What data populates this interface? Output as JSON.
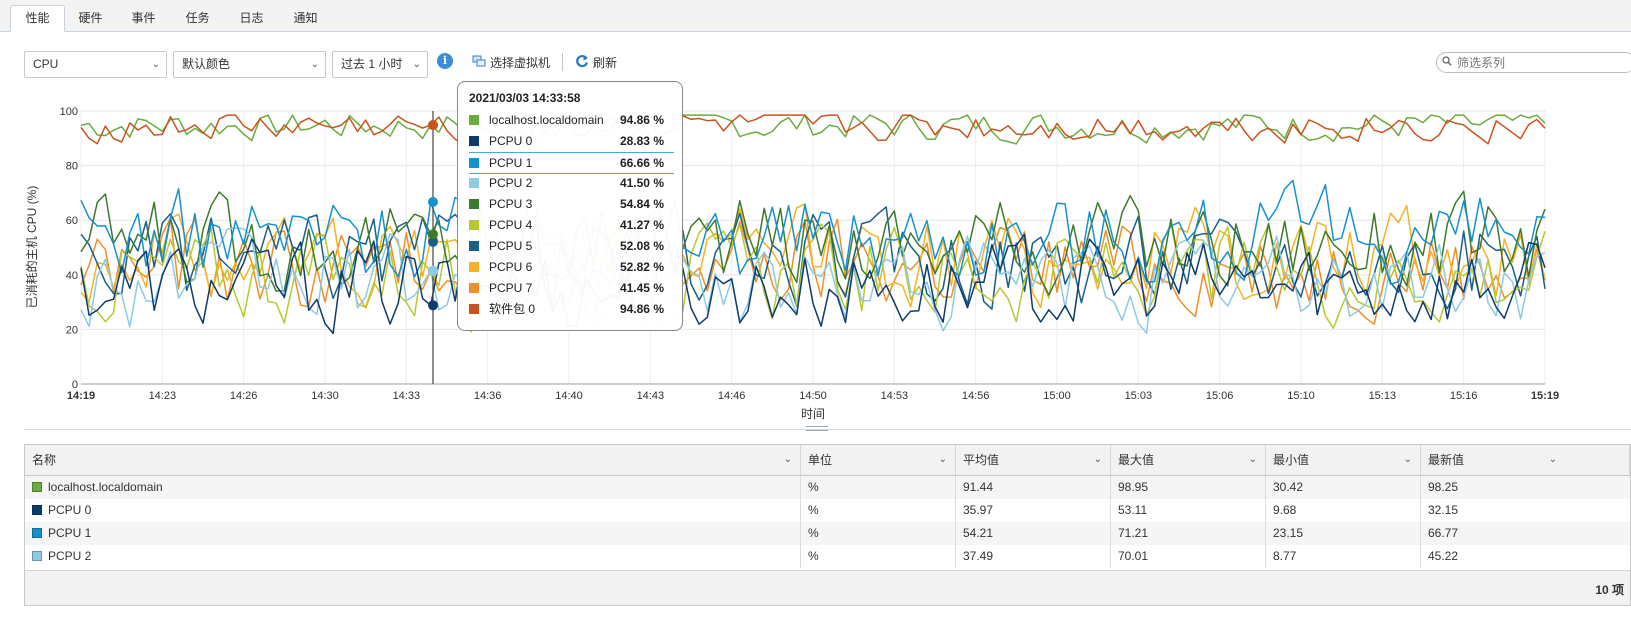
{
  "tabs": [
    {
      "label": "性能",
      "active": true
    },
    {
      "label": "硬件"
    },
    {
      "label": "事件"
    },
    {
      "label": "任务"
    },
    {
      "label": "日志"
    },
    {
      "label": "通知"
    }
  ],
  "toolbar": {
    "metric_select": "CPU",
    "color_select": "默认颜色",
    "time_select": "过去 1 小时",
    "select_vm_label": "选择虚拟机",
    "refresh_label": "刷新",
    "filter_placeholder": "筛选系列"
  },
  "tooltip": {
    "title": "2021/03/03 14:33:58",
    "rows": [
      {
        "name": "localhost.localdomain",
        "value": "94.86 %",
        "color": "#6aac3e"
      },
      {
        "name": "PCPU 0",
        "value": "28.83 %",
        "color": "#0d3b6e"
      },
      {
        "name": "PCPU 1",
        "value": "66.66 %",
        "color": "#1691cf",
        "highlight": true
      },
      {
        "name": "PCPU 2",
        "value": "41.50 %",
        "color": "#8ecae3"
      },
      {
        "name": "PCPU 3",
        "value": "54.84 %",
        "color": "#3d7a2c"
      },
      {
        "name": "PCPU 4",
        "value": "41.27 %",
        "color": "#b8c832"
      },
      {
        "name": "PCPU 5",
        "value": "52.08 %",
        "color": "#1a5f86"
      },
      {
        "name": "PCPU 6",
        "value": "52.82 %",
        "color": "#f6b222"
      },
      {
        "name": "PCPU 7",
        "value": "41.45 %",
        "color": "#ef8f2a"
      },
      {
        "name": "软件包 0",
        "value": "94.86 %",
        "color": "#c9541f"
      }
    ]
  },
  "chart_data": {
    "type": "line",
    "ylabel": "已消耗的主机 CPU (%)",
    "xlabel": "时间",
    "ylim": [
      0,
      100
    ],
    "yticks": [
      "0",
      "20",
      "40",
      "60",
      "80",
      "100"
    ],
    "xticks": [
      "14:19",
      "14:23",
      "14:26",
      "14:30",
      "14:33",
      "14:36",
      "14:40",
      "14:43",
      "14:46",
      "14:50",
      "14:53",
      "14:56",
      "15:00",
      "15:03",
      "15:06",
      "15:10",
      "15:13",
      "15:16",
      "15:19"
    ],
    "cursor_time": "14:33:58",
    "series": [
      {
        "name": "localhost.localdomain",
        "color": "#6aac3e",
        "base": 94.86,
        "cursor": 94.86
      },
      {
        "name": "PCPU 0",
        "color": "#0d3b6e",
        "base": 35.97,
        "cursor": 28.83
      },
      {
        "name": "PCPU 1",
        "color": "#1691cf",
        "base": 54.21,
        "cursor": 66.66
      },
      {
        "name": "PCPU 2",
        "color": "#8ecae3",
        "base": 37.49,
        "cursor": 41.5
      },
      {
        "name": "PCPU 3",
        "color": "#3d7a2c",
        "base": 52.0,
        "cursor": 54.84
      },
      {
        "name": "PCPU 4",
        "color": "#b8c832",
        "base": 40.0,
        "cursor": 41.27
      },
      {
        "name": "PCPU 5",
        "color": "#1a5f86",
        "base": 45.0,
        "cursor": 52.08
      },
      {
        "name": "PCPU 6",
        "color": "#f6b222",
        "base": 47.0,
        "cursor": 52.82
      },
      {
        "name": "PCPU 7",
        "color": "#ef8f2a",
        "base": 43.0,
        "cursor": 41.45
      },
      {
        "name": "软件包 0",
        "color": "#c9541f",
        "base": 94.0,
        "cursor": 94.86
      }
    ]
  },
  "grid": {
    "columns": [
      "名称",
      "单位",
      "平均值",
      "最大值",
      "最小值",
      "最新值"
    ],
    "rows": [
      {
        "name": "localhost.localdomain",
        "color": "#6aac3e",
        "unit": "%",
        "avg": "91.44",
        "max": "98.95",
        "min": "30.42",
        "latest": "98.25"
      },
      {
        "name": "PCPU 0",
        "color": "#0d3b6e",
        "unit": "%",
        "avg": "35.97",
        "max": "53.11",
        "min": "9.68",
        "latest": "32.15"
      },
      {
        "name": "PCPU 1",
        "color": "#1691cf",
        "unit": "%",
        "avg": "54.21",
        "max": "71.21",
        "min": "23.15",
        "latest": "66.77"
      },
      {
        "name": "PCPU 2",
        "color": "#8ecae3",
        "unit": "%",
        "avg": "37.49",
        "max": "70.01",
        "min": "8.77",
        "latest": "45.22"
      }
    ],
    "footer_count": "10 项"
  }
}
